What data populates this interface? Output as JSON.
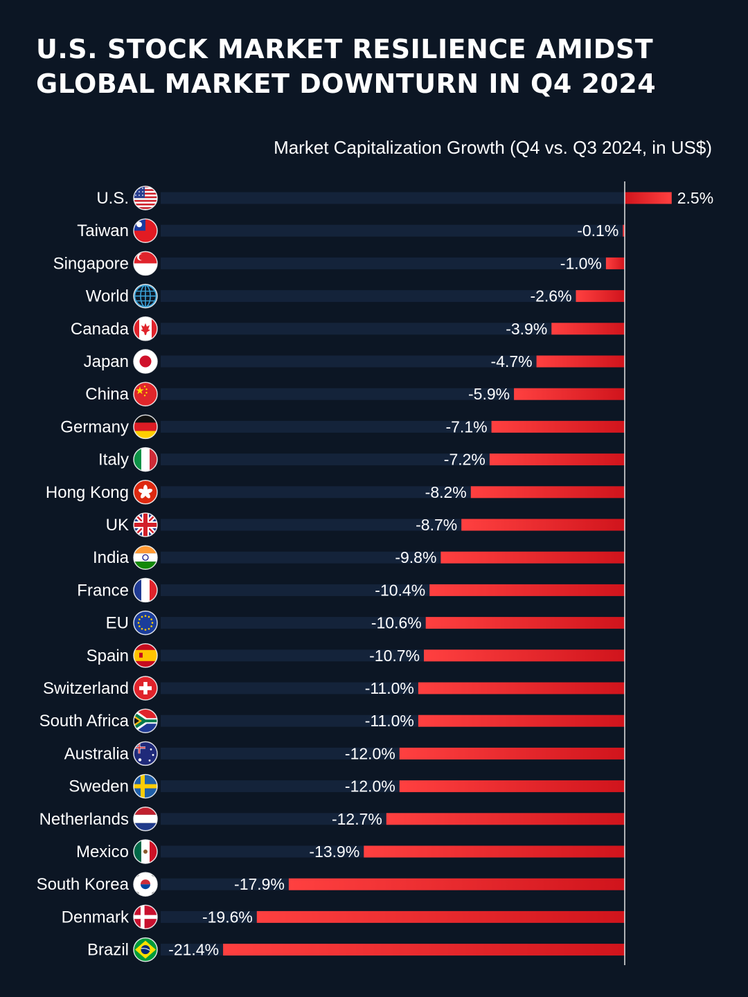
{
  "title_lines": [
    "U.S. Stock Market Resilience Amidst",
    "Global Market Downturn in Q4 2024"
  ],
  "chart_data": {
    "type": "bar",
    "orientation": "horizontal",
    "subtitle": "Market Capitalization Growth (Q4 vs. Q3 2024, in US$)",
    "categories": [
      "U.S.",
      "Taiwan",
      "Singapore",
      "World",
      "Canada",
      "Japan",
      "China",
      "Germany",
      "Italy",
      "Hong Kong",
      "UK",
      "India",
      "France",
      "EU",
      "Spain",
      "Switzerland",
      "South Africa",
      "Australia",
      "Sweden",
      "Netherlands",
      "Mexico",
      "South Korea",
      "Denmark",
      "Brazil"
    ],
    "values": [
      2.5,
      -0.1,
      -1.0,
      -2.6,
      -3.9,
      -4.7,
      -5.9,
      -7.1,
      -7.2,
      -8.2,
      -8.7,
      -9.8,
      -10.4,
      -10.6,
      -10.7,
      -11.0,
      -11.0,
      -12.0,
      -12.0,
      -12.7,
      -13.9,
      -17.9,
      -19.6,
      -21.4
    ],
    "value_labels": [
      "2.5%",
      "-0.1%",
      "-1.0%",
      "-2.6%",
      "-3.9%",
      "-4.7%",
      "-5.9%",
      "-7.1%",
      "-7.2%",
      "-8.2%",
      "-8.7%",
      "-9.8%",
      "-10.4%",
      "-10.6%",
      "-10.7%",
      "-11.0%",
      "-11.0%",
      "-12.0%",
      "-12.0%",
      "-12.7%",
      "-13.9%",
      "-17.9%",
      "-19.6%",
      "-21.4%"
    ],
    "flag_icons": [
      "us-flag-icon",
      "taiwan-flag-icon",
      "singapore-flag-icon",
      "world-globe-icon",
      "canada-flag-icon",
      "japan-flag-icon",
      "china-flag-icon",
      "germany-flag-icon",
      "italy-flag-icon",
      "hong-kong-flag-icon",
      "uk-flag-icon",
      "india-flag-icon",
      "france-flag-icon",
      "eu-flag-icon",
      "spain-flag-icon",
      "switzerland-flag-icon",
      "south-africa-flag-icon",
      "australia-flag-icon",
      "sweden-flag-icon",
      "netherlands-flag-icon",
      "mexico-flag-icon",
      "south-korea-flag-icon",
      "denmark-flag-icon",
      "brazil-flag-icon"
    ],
    "units": "%",
    "colors": {
      "background": "#0c1624",
      "track": "#14233a",
      "bar_dark": "#c8141c",
      "bar_light": "#ff3a3a",
      "zero_line": "#e6e6e6"
    }
  }
}
